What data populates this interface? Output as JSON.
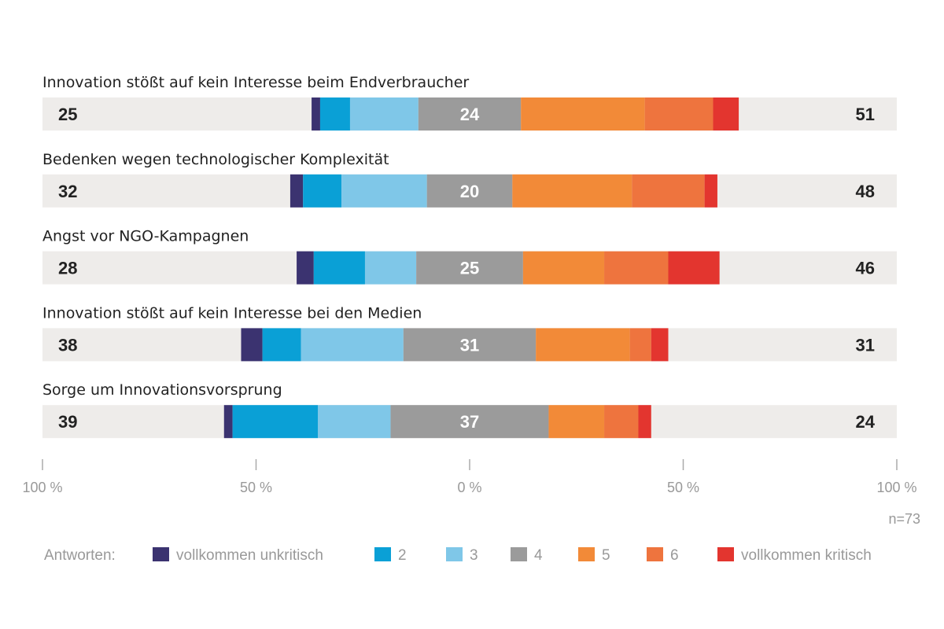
{
  "chart_data": {
    "type": "bar",
    "orientation": "horizontal",
    "stacked": "diverging",
    "categories": [
      "Innovation stößt auf kein Interesse beim Endverbraucher",
      "Bedenken wegen technologischer Komplexität",
      "Angst vor NGO-Kampagnen",
      "Innovation stößt auf kein Interesse bei den Medien",
      "Sorge um Innovationsvorsprung"
    ],
    "series": [
      {
        "name": "vollkommen unkritisch",
        "color": "#3b3370",
        "values": [
          2,
          3,
          4,
          5,
          2
        ]
      },
      {
        "name": "2",
        "color": "#0aa0d6",
        "values": [
          7,
          9,
          12,
          9,
          20
        ]
      },
      {
        "name": "3",
        "color": "#7fc7e8",
        "values": [
          16,
          20,
          12,
          24,
          17
        ]
      },
      {
        "name": "4",
        "color": "#9b9b9b",
        "values": [
          24,
          20,
          25,
          31,
          37
        ]
      },
      {
        "name": "5",
        "color": "#f28a38",
        "values": [
          29,
          28,
          19,
          22,
          13
        ]
      },
      {
        "name": "6",
        "color": "#ee743e",
        "values": [
          16,
          17,
          15,
          5,
          8
        ]
      },
      {
        "name": "vollkommen kritisch",
        "color": "#e3352f",
        "values": [
          6,
          3,
          12,
          4,
          3
        ]
      }
    ],
    "left_totals": [
      "25",
      "32",
      "28",
      "38",
      "39"
    ],
    "middle_labels": [
      "24",
      "20",
      "25",
      "31",
      "37"
    ],
    "right_totals": [
      "51",
      "48",
      "46",
      "31",
      "24"
    ],
    "xlim": [
      -100,
      100
    ],
    "xticks": [
      -100,
      -50,
      0,
      50,
      100
    ],
    "xtick_labels": [
      "100 %",
      "50 %",
      "0 %",
      "50 %",
      "100 %"
    ],
    "track_color": "#eeecea",
    "note": "n=73",
    "legend_title": "Antworten:",
    "legend_position": "bottom",
    "grid": false
  }
}
